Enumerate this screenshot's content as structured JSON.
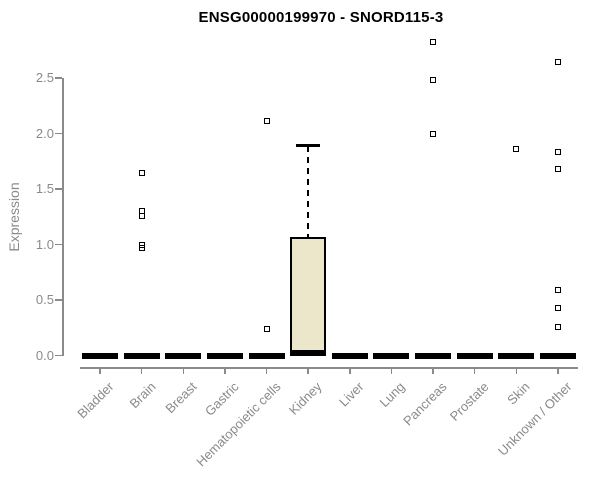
{
  "colors": {
    "background": "#ffffff",
    "axis": "#8a8a8a",
    "title_text": "#000000",
    "box_fill": "#ece7cb",
    "box_border": "#000000",
    "outlier_border": "#000000"
  },
  "chart_data": {
    "type": "boxplot",
    "title": "ENSG00000199970 - SNORD115-3",
    "xlabel": "",
    "ylabel": "Expression",
    "ylim": [
      0,
      2.9
    ],
    "y_ticks": [
      0.0,
      0.5,
      1.0,
      1.5,
      2.0,
      2.5
    ],
    "grid": false,
    "legend": false,
    "categories": [
      "Bladder",
      "Brain",
      "Breast",
      "Gastric",
      "Hematopoietic cells",
      "Kidney",
      "Liver",
      "Lung",
      "Pancreas",
      "Prostate",
      "Skin",
      "Unknown / Other"
    ],
    "boxes": [
      {
        "category": "Bladder",
        "median": 0,
        "q1": 0,
        "q3": 0,
        "whisker_low": 0,
        "whisker_high": 0,
        "outliers": []
      },
      {
        "category": "Brain",
        "median": 0,
        "q1": 0,
        "q3": 0,
        "whisker_low": 0,
        "whisker_high": 0,
        "outliers": [
          1.64,
          1.3,
          1.26,
          1.0,
          0.97
        ]
      },
      {
        "category": "Breast",
        "median": 0,
        "q1": 0,
        "q3": 0,
        "whisker_low": 0,
        "whisker_high": 0,
        "outliers": []
      },
      {
        "category": "Gastric",
        "median": 0,
        "q1": 0,
        "q3": 0,
        "whisker_low": 0,
        "whisker_high": 0,
        "outliers": []
      },
      {
        "category": "Hematopoietic cells",
        "median": 0,
        "q1": 0,
        "q3": 0,
        "whisker_low": 0,
        "whisker_high": 0,
        "outliers": [
          2.11,
          0.24
        ]
      },
      {
        "category": "Kidney",
        "median": 0.02,
        "q1": 0,
        "q3": 1.07,
        "whisker_low": 0,
        "whisker_high": 1.89,
        "outliers": []
      },
      {
        "category": "Liver",
        "median": 0,
        "q1": 0,
        "q3": 0,
        "whisker_low": 0,
        "whisker_high": 0,
        "outliers": []
      },
      {
        "category": "Lung",
        "median": 0,
        "q1": 0,
        "q3": 0,
        "whisker_low": 0,
        "whisker_high": 0,
        "outliers": []
      },
      {
        "category": "Pancreas",
        "median": 0,
        "q1": 0,
        "q3": 0,
        "whisker_low": 0,
        "whisker_high": 0,
        "outliers": [
          2.82,
          2.48,
          2.0
        ]
      },
      {
        "category": "Prostate",
        "median": 0,
        "q1": 0,
        "q3": 0,
        "whisker_low": 0,
        "whisker_high": 0,
        "outliers": []
      },
      {
        "category": "Skin",
        "median": 0,
        "q1": 0,
        "q3": 0,
        "whisker_low": 0,
        "whisker_high": 0,
        "outliers": [
          1.86
        ]
      },
      {
        "category": "Unknown / Other",
        "median": 0,
        "q1": 0,
        "q3": 0,
        "whisker_low": 0,
        "whisker_high": 0,
        "outliers": [
          2.64,
          1.83,
          1.68,
          0.59,
          0.43,
          0.26
        ]
      }
    ]
  }
}
